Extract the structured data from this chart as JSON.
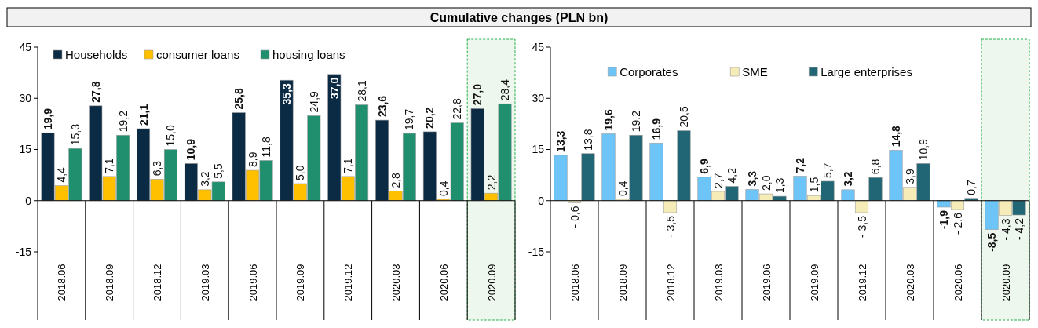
{
  "chart_data": [
    {
      "type": "bar",
      "title": "Cumulative changes (PLN bn)",
      "categories": [
        "2018.06",
        "2018.09",
        "2018.12",
        "2019.03",
        "2019.06",
        "2019.09",
        "2019.12",
        "2020.03",
        "2020.06",
        "2020.09"
      ],
      "series": [
        {
          "name": "Households",
          "color": "#0b2a44",
          "values": [
            19.9,
            27.8,
            21.1,
            10.9,
            25.8,
            35.3,
            37.0,
            23.6,
            20.2,
            27.0
          ],
          "value_labels": [
            "19,9",
            "27,8",
            "21,1",
            "10,9",
            "25,8",
            "35,3",
            "37,0",
            "23,6",
            "20,2",
            "27,0"
          ]
        },
        {
          "name": "consumer loans",
          "color": "#ffc000",
          "values": [
            4.4,
            7.1,
            6.3,
            3.2,
            8.9,
            5.0,
            7.1,
            2.8,
            0.4,
            2.2
          ],
          "value_labels": [
            "4,4",
            "7,1",
            "6,3",
            "3,2",
            "8,9",
            "5,0",
            "7,1",
            "2,8",
            "0,4",
            "2,2"
          ]
        },
        {
          "name": "housing loans",
          "color": "#1f8f6e",
          "values": [
            15.3,
            19.2,
            15.0,
            5.5,
            11.8,
            24.9,
            28.1,
            19.7,
            22.8,
            28.4
          ],
          "value_labels": [
            "15,3",
            "19,2",
            "15,0",
            "5,5",
            "11,8",
            "24,9",
            "28,1",
            "19,7",
            "22,8",
            "28,4"
          ]
        }
      ],
      "ylim": [
        -35,
        45
      ],
      "yticks": [
        -15,
        0,
        15,
        30,
        45
      ],
      "legend": "top left",
      "bands": [
        {
          "axis": "x",
          "from": "2020.09",
          "to": "2020.09",
          "color": "#eef7ee"
        }
      ]
    },
    {
      "type": "bar",
      "categories": [
        "2018.06",
        "2018.09",
        "2018.12",
        "2019.03",
        "2019.06",
        "2019.09",
        "2019.12",
        "2020.03",
        "2020.06",
        "2020.09"
      ],
      "series": [
        {
          "name": "Corporates",
          "color": "#6cc4f7",
          "values": [
            13.3,
            19.6,
            16.9,
            6.9,
            3.3,
            7.2,
            3.2,
            14.8,
            -1.9,
            -8.5
          ],
          "value_labels": [
            "13,3",
            "19,6",
            "16,9",
            "6,9",
            "3,3",
            "7,2",
            "3,2",
            "14,8",
            "-1,9",
            "-8,5"
          ]
        },
        {
          "name": "SME",
          "color": "#f6ecb7",
          "values": [
            -0.6,
            0.4,
            -3.5,
            2.7,
            2.0,
            1.5,
            -3.5,
            3.9,
            -2.6,
            -4.3
          ],
          "value_labels": [
            "- 0,6",
            "0,4",
            "- 3,5",
            "2,7",
            "2,0",
            "1,5",
            "- 3,5",
            "3,9",
            "- 2,6",
            "- 4,3"
          ]
        },
        {
          "name": "Large enterprises",
          "color": "#216675",
          "values": [
            13.8,
            19.2,
            20.5,
            4.2,
            1.3,
            5.7,
            6.8,
            10.9,
            0.7,
            -4.2
          ],
          "value_labels": [
            "13,8",
            "19,2",
            "20,5",
            "4,2",
            "1,3",
            "5,7",
            "6,8",
            "10,9",
            "0,7",
            "- 4,2"
          ]
        }
      ],
      "ylim": [
        -35,
        45
      ],
      "yticks": [
        -15,
        0,
        15,
        30,
        45
      ],
      "legend": "top",
      "bands": [
        {
          "axis": "x",
          "from": "2020.09",
          "to": "2020.09",
          "color": "#eef7ee"
        }
      ]
    }
  ]
}
